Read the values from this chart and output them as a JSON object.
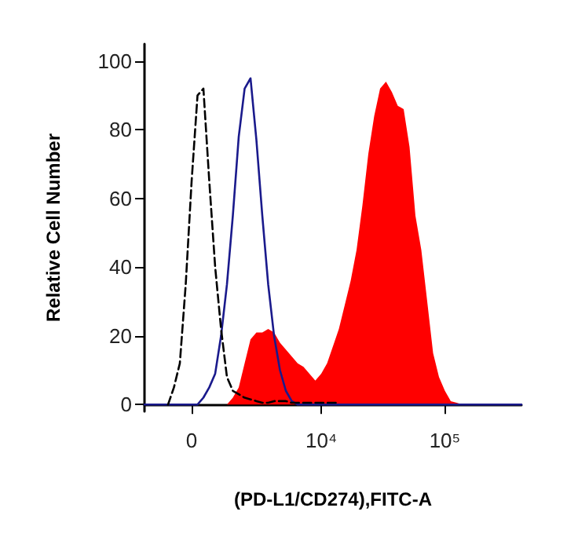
{
  "chart_data": {
    "type": "area",
    "xlabel": "(PD-L1/CD274),FITC-A",
    "ylabel": "Relative Cell Number",
    "categories": [
      null,
      null,
      null,
      null,
      null,
      null,
      null,
      null,
      "0",
      null,
      null,
      null,
      null,
      null,
      null,
      null,
      null,
      null,
      null,
      null,
      null,
      null,
      null,
      null,
      null,
      null,
      null,
      null,
      null,
      null,
      "10⁴",
      null,
      null,
      null,
      null,
      null,
      null,
      null,
      null,
      null,
      null,
      null,
      null,
      null,
      null,
      null,
      null,
      null,
      null,
      null,
      null,
      "10⁵",
      null,
      null,
      null,
      null,
      null,
      null,
      null,
      null,
      null,
      null,
      null,
      null,
      null
    ],
    "ylim": [
      -2,
      105
    ],
    "yticks": [
      0,
      20,
      40,
      60,
      80,
      100
    ],
    "grid": false,
    "marker": "none",
    "series": [
      {
        "color": "#ff0000",
        "values": [
          null,
          null,
          null,
          null,
          null,
          null,
          null,
          null,
          null,
          null,
          null,
          null,
          null,
          null,
          0,
          2,
          5,
          12,
          19,
          21,
          21,
          22,
          21,
          18,
          16,
          14,
          12,
          11,
          9,
          7,
          9,
          12,
          17,
          22,
          29,
          36,
          45,
          58,
          73,
          84,
          92,
          94,
          91,
          87,
          86,
          75,
          55,
          45,
          30,
          15,
          8,
          4,
          1,
          0.5,
          0,
          null,
          null,
          null,
          null,
          null,
          null,
          null,
          null,
          null,
          null
        ]
      },
      {
        "type": "line",
        "color": "#1a1a8c",
        "line_style": "solid",
        "values": [
          0,
          0,
          0,
          0,
          0,
          0,
          0,
          0,
          0,
          0,
          2,
          5,
          9,
          20,
          35,
          55,
          78,
          92,
          95,
          77,
          55,
          35,
          20,
          10,
          4,
          1,
          0,
          0,
          0,
          0,
          0,
          0,
          0,
          0,
          0,
          0,
          0,
          0,
          0,
          0,
          0,
          0,
          0,
          0,
          0,
          0,
          0,
          0,
          0,
          0,
          0,
          0,
          0,
          0,
          0,
          0,
          0,
          0,
          0,
          0,
          0,
          0,
          0,
          0,
          0
        ]
      },
      {
        "type": "line",
        "color": "#000000",
        "line_style": "dashed",
        "values": [
          null,
          null,
          null,
          null,
          0,
          5,
          12,
          35,
          65,
          90,
          92,
          65,
          40,
          22,
          8,
          4,
          3,
          2,
          1.5,
          1,
          0.5,
          0.5,
          1,
          1,
          1,
          0.5,
          0.5,
          0.5,
          0.5,
          0.5,
          0.5,
          0.5,
          0.5,
          0.5,
          null,
          null,
          null,
          null,
          null,
          null,
          null,
          null,
          null,
          null,
          null,
          null,
          null,
          null,
          null,
          null,
          null,
          null,
          null,
          null,
          null,
          null,
          null,
          null,
          null,
          null,
          null,
          null,
          null,
          null,
          null
        ]
      }
    ]
  }
}
